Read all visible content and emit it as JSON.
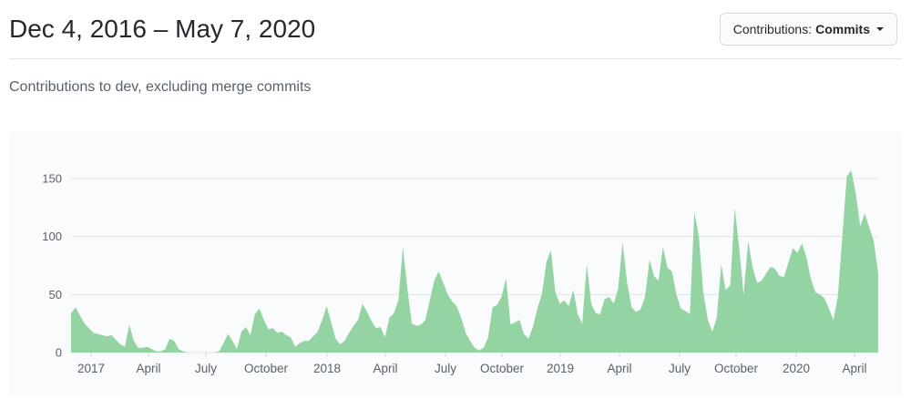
{
  "header": {
    "title": "Dec 4, 2016 – May 7, 2020",
    "filter_label": "Contributions:",
    "filter_value": "Commits"
  },
  "subtitle": "Contributions to dev, excluding merge commits",
  "colors": {
    "area_green": "#94d3a2",
    "card_bg": "#fafbfc",
    "grid": "#e1e4e8",
    "tick": "#d1d5da",
    "axis_text": "#586069",
    "title_text": "#24292e",
    "subtitle_text": "#586069",
    "divider": "#e1e4e8",
    "button_bg": "#fafbfc",
    "button_border": "#d9dadc"
  },
  "chart_data": {
    "type": "area",
    "title": "Contributions to dev, excluding merge commits",
    "x_unit": "week",
    "date_range": [
      "Dec 4, 2016",
      "May 7, 2020"
    ],
    "xlabel": "",
    "ylabel": "",
    "ylim": [
      0,
      165
    ],
    "grid": true,
    "legend": false,
    "area_color": "#94d3a2",
    "y_ticks": [
      0,
      50,
      100,
      150
    ],
    "x_ticks": [
      {
        "label": "2017",
        "week": 4.47
      },
      {
        "label": "April",
        "week": 17.27
      },
      {
        "label": "July",
        "week": 30.07
      },
      {
        "label": "October",
        "week": 43.48
      },
      {
        "label": "2018",
        "week": 57.09
      },
      {
        "label": "April",
        "week": 70.09
      },
      {
        "label": "July",
        "week": 83.5
      },
      {
        "label": "October",
        "week": 96.1
      },
      {
        "label": "2019",
        "week": 109.1
      },
      {
        "label": "April",
        "week": 122.31
      },
      {
        "label": "July",
        "week": 135.72
      },
      {
        "label": "October",
        "week": 148.31
      },
      {
        "label": "2020",
        "week": 161.72
      },
      {
        "label": "April",
        "week": 174.73
      }
    ],
    "values": [
      34,
      39,
      32,
      25,
      21,
      17,
      16,
      15,
      14,
      15,
      11,
      7,
      5,
      24,
      10,
      4,
      4,
      5,
      3,
      1,
      1,
      3,
      12,
      10,
      3,
      1,
      0,
      0,
      0,
      0,
      0,
      0,
      0,
      1,
      8,
      16,
      10,
      3,
      18,
      22,
      15,
      33,
      38,
      28,
      20,
      21,
      17,
      18,
      15,
      13,
      5,
      8,
      10,
      10,
      14,
      18,
      28,
      40,
      26,
      12,
      7,
      10,
      17,
      23,
      28,
      42,
      35,
      27,
      21,
      22,
      13,
      30,
      34,
      45,
      91,
      55,
      25,
      23,
      24,
      28,
      45,
      62,
      70,
      60,
      50,
      44,
      40,
      30,
      17,
      10,
      4,
      2,
      4,
      13,
      39,
      41,
      48,
      64,
      24,
      26,
      28,
      16,
      12,
      22,
      38,
      50,
      78,
      88,
      52,
      42,
      45,
      40,
      54,
      33,
      25,
      76,
      42,
      34,
      33,
      46,
      48,
      42,
      55,
      95,
      60,
      39,
      35,
      37,
      48,
      80,
      66,
      62,
      91,
      73,
      70,
      50,
      38,
      36,
      33,
      121,
      100,
      52,
      28,
      18,
      30,
      76,
      54,
      58,
      125,
      90,
      50,
      96,
      73,
      60,
      62,
      68,
      74,
      72,
      66,
      65,
      78,
      90,
      86,
      94,
      82,
      63,
      52,
      50,
      47,
      38,
      28,
      48,
      100,
      152,
      157,
      137,
      109,
      120,
      108,
      96,
      68
    ]
  }
}
